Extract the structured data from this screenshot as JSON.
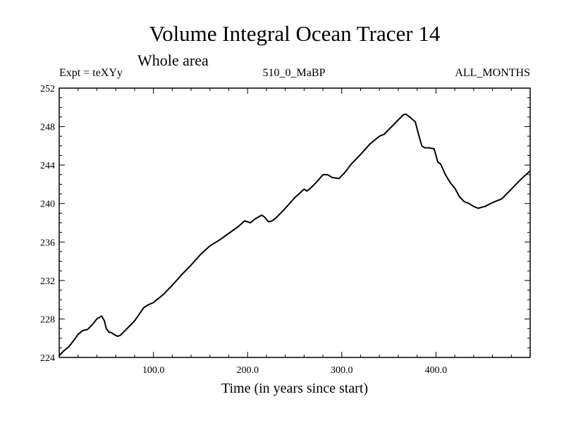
{
  "chart_data": {
    "type": "line",
    "title": "Volume Integral Ocean Tracer 14",
    "subtitle": "Whole area",
    "left_label": "Expt = teXYy",
    "center_label": "510_0_MaBP",
    "right_label": "ALL_MONTHS",
    "xlabel": "Time (in years since start)",
    "ylabel": "",
    "xlim": [
      0,
      500
    ],
    "ylim": [
      224,
      252
    ],
    "x_major_ticks": [
      100,
      200,
      300,
      400
    ],
    "x_tick_labels": [
      "100.0",
      "200.0",
      "300.0",
      "400.0"
    ],
    "y_major_ticks": [
      224,
      228,
      232,
      236,
      240,
      244,
      248,
      252
    ],
    "y_tick_labels": [
      "224",
      "228",
      "232",
      "236",
      "240",
      "244",
      "248",
      "252"
    ],
    "grid": false,
    "series": [
      {
        "x": [
          0,
          5,
          10,
          15,
          20,
          25,
          30,
          35,
          40,
          45,
          48,
          50,
          53,
          55,
          58,
          62,
          65,
          70,
          75,
          80,
          85,
          90,
          95,
          100,
          110,
          120,
          130,
          140,
          150,
          160,
          170,
          180,
          190,
          197,
          203,
          208,
          215,
          218,
          222,
          226,
          230,
          235,
          240,
          250,
          260,
          263,
          268,
          272,
          280,
          285,
          290,
          297,
          303,
          310,
          320,
          330,
          340,
          345,
          350,
          360,
          365,
          368,
          372,
          378,
          382,
          385,
          388,
          392,
          398,
          402,
          405,
          410,
          415,
          420,
          425,
          430,
          435,
          440,
          445,
          448,
          452,
          460,
          470,
          480,
          490,
          500
        ],
        "values": [
          224.2,
          224.7,
          225.1,
          225.7,
          226.4,
          226.8,
          226.9,
          227.4,
          228.0,
          228.3,
          227.8,
          227.0,
          226.6,
          226.6,
          226.4,
          226.2,
          226.3,
          226.8,
          227.3,
          227.8,
          228.5,
          229.2,
          229.5,
          229.7,
          230.5,
          231.5,
          232.6,
          233.6,
          234.7,
          235.6,
          236.2,
          236.9,
          237.6,
          238.2,
          238.0,
          238.4,
          238.8,
          238.6,
          238.1,
          238.2,
          238.5,
          239.0,
          239.5,
          240.6,
          241.5,
          241.3,
          241.7,
          242.1,
          243.0,
          243.0,
          242.7,
          242.6,
          243.2,
          244.1,
          245.1,
          246.2,
          247.0,
          247.2,
          247.7,
          248.7,
          249.2,
          249.3,
          249.0,
          248.5,
          247.0,
          246.0,
          245.8,
          245.8,
          245.7,
          244.3,
          244.1,
          243.0,
          242.2,
          241.6,
          240.7,
          240.2,
          240.0,
          239.7,
          239.5,
          239.6,
          239.7,
          240.1,
          240.5,
          241.5,
          242.5,
          243.4
        ]
      }
    ]
  }
}
